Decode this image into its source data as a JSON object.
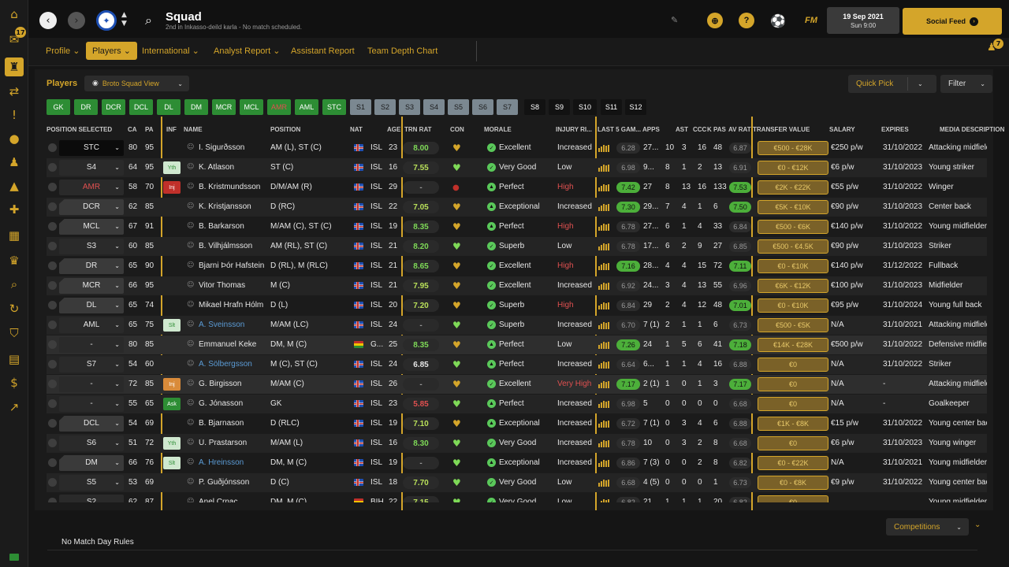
{
  "header": {
    "title": "Squad",
    "subtitle": "2nd in Inkasso-deild karla - No match scheduled.",
    "date": "19 Sep 2021",
    "time": "Sun 9:00",
    "social": "Social Feed",
    "fm": "FM",
    "help": "?"
  },
  "sidebar": {
    "badge": "17"
  },
  "tabs": [
    "Profile",
    "Players",
    "International",
    "Analyst Report",
    "Assistant Report",
    "Team Depth Chart"
  ],
  "notif_count": "7",
  "panel": {
    "players_label": "Players",
    "view": "Broto Squad View",
    "quick_pick": "Quick Pick",
    "filter": "Filter"
  },
  "chips": [
    "GK",
    "DR",
    "DCR",
    "DCL",
    "DL",
    "DM",
    "MCR",
    "MCL",
    "AMR",
    "AML",
    "STC",
    "S1",
    "S2",
    "S3",
    "S4",
    "S5",
    "S6",
    "S7",
    "S8",
    "S9",
    "S10",
    "S11",
    "S12"
  ],
  "columns": [
    "POSITION SELECTED",
    "CA",
    "PA",
    "INF",
    "NAME",
    "POSITION",
    "NAT",
    "AGE",
    "TRN RAT",
    "CON",
    "MORALE",
    "INJURY RI...",
    "LAST 5 GAM...",
    "APPS",
    "AST",
    "CCC",
    "K PAS",
    "AV RAT",
    "TRANSFER VALUE",
    "SALARY",
    "EXPIRES",
    "MEDIA DESCRIPTION"
  ],
  "players": [
    {
      "sel": "STC",
      "ca": "80",
      "pa": "95",
      "inf": "",
      "name": "I. Sigurðsson",
      "pos": "AM (L), ST (C)",
      "nat": "ISL",
      "age": "23",
      "trn": "8.00",
      "morale": "Excellent",
      "inj": "Increased",
      "l5": "6.28",
      "apps": "27...",
      "gls": "10",
      "ast": "3",
      "ccc": "16",
      "kpas": "48",
      "avr": "6.87",
      "tv": "€500 - €28K",
      "sal": "€250 p/w",
      "exp": "31/10/2022",
      "media": "Attacking midfielder"
    },
    {
      "sel": "S4",
      "ca": "64",
      "pa": "95",
      "inf": "Yth",
      "name": "K. Atlason",
      "pos": "ST (C)",
      "nat": "ISL",
      "age": "16",
      "trn": "7.55",
      "morale": "Very Good",
      "inj": "Low",
      "l5": "6.98",
      "apps": "9...",
      "gls": "8",
      "ast": "1",
      "ccc": "2",
      "kpas": "13",
      "avr": "6.91",
      "tv": "€0 - €12K",
      "sal": "€6 p/w",
      "exp": "31/10/2023",
      "media": "Young striker"
    },
    {
      "sel": "AMR",
      "ca": "58",
      "pa": "70",
      "inf": "Inj",
      "name": "B. Kristmundsson",
      "pos": "D/M/AM (R)",
      "nat": "ISL",
      "age": "29",
      "trn": "-",
      "morale": "Perfect",
      "inj": "High",
      "l5": "7.42",
      "apps": "27",
      "gls": "8",
      "ast": "13",
      "ccc": "16",
      "kpas": "133",
      "avr": "7.53",
      "tv": "€2K - €22K",
      "sal": "€55 p/w",
      "exp": "31/10/2022",
      "media": "Winger"
    },
    {
      "sel": "DCR",
      "ca": "62",
      "pa": "85",
      "inf": "",
      "name": "K. Kristjansson",
      "pos": "D (RC)",
      "nat": "ISL",
      "age": "22",
      "trn": "7.05",
      "morale": "Exceptional",
      "inj": "Increased",
      "l5": "7.30",
      "apps": "29...",
      "gls": "7",
      "ast": "4",
      "ccc": "1",
      "kpas": "6",
      "avr": "7.50",
      "tv": "€5K - €10K",
      "sal": "€90 p/w",
      "exp": "31/10/2023",
      "media": "Center back"
    },
    {
      "sel": "MCL",
      "ca": "67",
      "pa": "91",
      "inf": "",
      "name": "B. Barkarson",
      "pos": "M/AM (C), ST (C)",
      "nat": "ISL",
      "age": "19",
      "trn": "8.35",
      "morale": "Perfect",
      "inj": "High",
      "l5": "6.78",
      "apps": "27...",
      "gls": "6",
      "ast": "1",
      "ccc": "4",
      "kpas": "33",
      "avr": "6.84",
      "tv": "€500 - €6K",
      "sal": "€140 p/w",
      "exp": "31/10/2022",
      "media": "Young midfielder"
    },
    {
      "sel": "S3",
      "ca": "60",
      "pa": "85",
      "inf": "",
      "name": "B. Vilhjálmsson",
      "pos": "AM (RL), ST (C)",
      "nat": "ISL",
      "age": "21",
      "trn": "8.20",
      "morale": "Superb",
      "inj": "Low",
      "l5": "6.78",
      "apps": "17...",
      "gls": "6",
      "ast": "2",
      "ccc": "9",
      "kpas": "27",
      "avr": "6.85",
      "tv": "€500 - €4.5K",
      "sal": "€90 p/w",
      "exp": "31/10/2023",
      "media": "Striker"
    },
    {
      "sel": "DR",
      "ca": "65",
      "pa": "90",
      "inf": "",
      "name": "Bjarni Þór Hafstein",
      "pos": "D (RL), M (RLC)",
      "nat": "ISL",
      "age": "21",
      "trn": "8.65",
      "morale": "Excellent",
      "inj": "High",
      "l5": "7.16",
      "apps": "28...",
      "gls": "4",
      "ast": "4",
      "ccc": "15",
      "kpas": "72",
      "avr": "7.11",
      "tv": "€0 - €10K",
      "sal": "€140 p/w",
      "exp": "31/12/2022",
      "media": "Fullback"
    },
    {
      "sel": "MCR",
      "ca": "66",
      "pa": "95",
      "inf": "",
      "name": "Vitor Thomas",
      "pos": "M (C)",
      "nat": "ISL",
      "age": "21",
      "trn": "7.95",
      "morale": "Excellent",
      "inj": "Increased",
      "l5": "6.92",
      "apps": "24...",
      "gls": "3",
      "ast": "4",
      "ccc": "13",
      "kpas": "55",
      "avr": "6.96",
      "tv": "€6K - €12K",
      "sal": "€100 p/w",
      "exp": "31/10/2023",
      "media": "Midfielder"
    },
    {
      "sel": "DL",
      "ca": "65",
      "pa": "74",
      "inf": "",
      "name": "Mikael Hrafn Hólm",
      "pos": "D (L)",
      "nat": "ISL",
      "age": "20",
      "trn": "7.20",
      "morale": "Superb",
      "inj": "High",
      "l5": "6.84",
      "apps": "29",
      "gls": "2",
      "ast": "4",
      "ccc": "12",
      "kpas": "48",
      "avr": "7.01",
      "tv": "€0 - €10K",
      "sal": "€95 p/w",
      "exp": "31/10/2024",
      "media": "Young full back"
    },
    {
      "sel": "AML",
      "ca": "65",
      "pa": "75",
      "inf": "Slt",
      "name": "A. Sveinsson",
      "pos": "M/AM (LC)",
      "nat": "ISL",
      "age": "24",
      "trn": "-",
      "morale": "Superb",
      "inj": "Increased",
      "l5": "6.70",
      "apps": "7 (1)",
      "gls": "2",
      "ast": "1",
      "ccc": "1",
      "kpas": "6",
      "avr": "6.73",
      "tv": "€500 - €5K",
      "sal": "N/A",
      "exp": "31/10/2021",
      "media": "Attacking midfielder"
    },
    {
      "sel": "-",
      "ca": "80",
      "pa": "85",
      "inf": "",
      "name": "Emmanuel Keke",
      "pos": "DM, M (C)",
      "nat": "G...",
      "age": "25",
      "trn": "8.35",
      "morale": "Perfect",
      "inj": "Low",
      "l5": "7.26",
      "apps": "24",
      "gls": "1",
      "ast": "5",
      "ccc": "6",
      "kpas": "41",
      "avr": "7.18",
      "tv": "€14K - €28K",
      "sal": "€500 p/w",
      "exp": "31/10/2022",
      "media": "Defensive midfielder"
    },
    {
      "sel": "S7",
      "ca": "54",
      "pa": "60",
      "inf": "",
      "name": "A. Sölbergsson",
      "pos": "M (C), ST (C)",
      "nat": "ISL",
      "age": "24",
      "trn": "6.85",
      "morale": "Perfect",
      "inj": "Increased",
      "l5": "6.64",
      "apps": "6...",
      "gls": "1",
      "ast": "1",
      "ccc": "4",
      "kpas": "16",
      "avr": "6.88",
      "tv": "€0",
      "sal": "N/A",
      "exp": "31/10/2022",
      "media": "Striker"
    },
    {
      "sel": "-",
      "ca": "72",
      "pa": "85",
      "inf": "Inj",
      "name": "G. Birgisson",
      "pos": "M/AM (C)",
      "nat": "ISL",
      "age": "26",
      "trn": "-",
      "morale": "Excellent",
      "inj": "Very High",
      "l5": "7.17",
      "apps": "2 (1)",
      "gls": "1",
      "ast": "0",
      "ccc": "1",
      "kpas": "3",
      "avr": "7.17",
      "tv": "€0",
      "sal": "N/A",
      "exp": "-",
      "media": "Attacking midfielder"
    },
    {
      "sel": "-",
      "ca": "55",
      "pa": "65",
      "inf": "Ask",
      "name": "G. Jónasson",
      "pos": "GK",
      "nat": "ISL",
      "age": "23",
      "trn": "5.85",
      "morale": "Perfect",
      "inj": "Increased",
      "l5": "6.98",
      "apps": "5",
      "gls": "0",
      "ast": "0",
      "ccc": "0",
      "kpas": "0",
      "avr": "6.68",
      "tv": "€0",
      "sal": "N/A",
      "exp": "-",
      "media": "Goalkeeper"
    },
    {
      "sel": "DCL",
      "ca": "54",
      "pa": "69",
      "inf": "",
      "name": "B. Bjarnason",
      "pos": "D (RLC)",
      "nat": "ISL",
      "age": "19",
      "trn": "7.10",
      "morale": "Exceptional",
      "inj": "Increased",
      "l5": "6.72",
      "apps": "7 (1)",
      "gls": "0",
      "ast": "3",
      "ccc": "4",
      "kpas": "6",
      "avr": "6.88",
      "tv": "€1K - €8K",
      "sal": "€15 p/w",
      "exp": "31/10/2022",
      "media": "Young center back"
    },
    {
      "sel": "S6",
      "ca": "51",
      "pa": "72",
      "inf": "Yth",
      "name": "Ú. Prastarson",
      "pos": "M/AM (L)",
      "nat": "ISL",
      "age": "16",
      "trn": "8.30",
      "morale": "Very Good",
      "inj": "Increased",
      "l5": "6.78",
      "apps": "10",
      "gls": "0",
      "ast": "3",
      "ccc": "2",
      "kpas": "8",
      "avr": "6.68",
      "tv": "€0",
      "sal": "€6 p/w",
      "exp": "31/10/2023",
      "media": "Young winger"
    },
    {
      "sel": "DM",
      "ca": "66",
      "pa": "76",
      "inf": "Slt",
      "name": "A. Hreinsson",
      "pos": "DM, M (C)",
      "nat": "ISL",
      "age": "19",
      "trn": "-",
      "morale": "Exceptional",
      "inj": "Increased",
      "l5": "6.86",
      "apps": "7 (3)",
      "gls": "0",
      "ast": "0",
      "ccc": "2",
      "kpas": "8",
      "avr": "6.82",
      "tv": "€0 - €22K",
      "sal": "N/A",
      "exp": "31/10/2021",
      "media": "Young midfielder"
    },
    {
      "sel": "S5",
      "ca": "53",
      "pa": "69",
      "inf": "",
      "name": "P. Guðjónsson",
      "pos": "D (C)",
      "nat": "ISL",
      "age": "18",
      "trn": "7.70",
      "morale": "Very Good",
      "inj": "Low",
      "l5": "6.68",
      "apps": "4 (5)",
      "gls": "0",
      "ast": "0",
      "ccc": "0",
      "kpas": "1",
      "avr": "6.73",
      "tv": "€0 - €8K",
      "sal": "€9 p/w",
      "exp": "31/10/2022",
      "media": "Young center back"
    },
    {
      "sel": "S2",
      "ca": "62",
      "pa": "87",
      "inf": "",
      "name": "Anel Crnac",
      "pos": "DM, M (C)",
      "nat": "BIH",
      "age": "22",
      "trn": "7.15",
      "morale": "Very Good",
      "inj": "Low",
      "l5": "6.82",
      "apps": "21",
      "gls": "1",
      "ast": "1",
      "ccc": "1",
      "kpas": "20",
      "avr": "6.82",
      "tv": "€0",
      "sal": "",
      "exp": "",
      "media": "Young midfielder"
    }
  ],
  "footer": {
    "competitions": "Competitions",
    "rules": "No Match Day Rules"
  },
  "colors": {
    "accent": "#d4a52a",
    "green": "#2d8d34",
    "red": "#e05050"
  }
}
